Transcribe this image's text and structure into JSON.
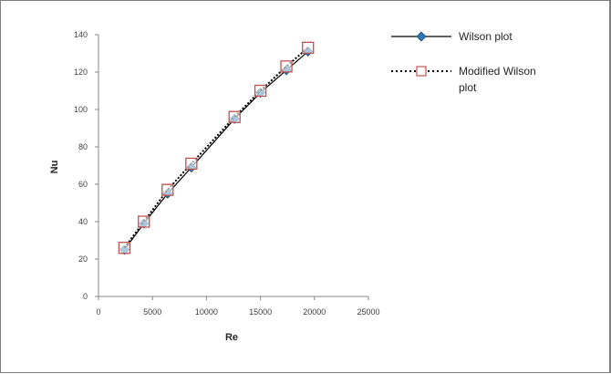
{
  "chart_data": {
    "type": "line",
    "title": "",
    "xlabel": "Re",
    "ylabel": "Nu",
    "xlim": [
      0,
      25000
    ],
    "ylim": [
      0,
      140
    ],
    "xticks": [
      "0",
      "5000",
      "10000",
      "15000",
      "20000",
      "25000"
    ],
    "yticks": [
      "0",
      "20",
      "40",
      "60",
      "80",
      "100",
      "120",
      "140"
    ],
    "grid": false,
    "legend_position": "top-right",
    "series": [
      {
        "name": "Wilson plot",
        "color": "#2e75b6",
        "marker": "diamond",
        "line": "solid",
        "x": [
          2400,
          4200,
          6400,
          8600,
          12600,
          15000,
          17400,
          19400
        ],
        "y": [
          25,
          39,
          55,
          69,
          95,
          109,
          121,
          131
        ]
      },
      {
        "name": "Modified Wilson plot",
        "color": "#c0504d",
        "marker": "square-open",
        "line": "dotted",
        "x": [
          2400,
          4200,
          6400,
          8600,
          12600,
          15000,
          17400,
          19400
        ],
        "y": [
          26,
          40,
          57,
          71,
          96,
          110,
          123,
          133
        ]
      }
    ]
  }
}
